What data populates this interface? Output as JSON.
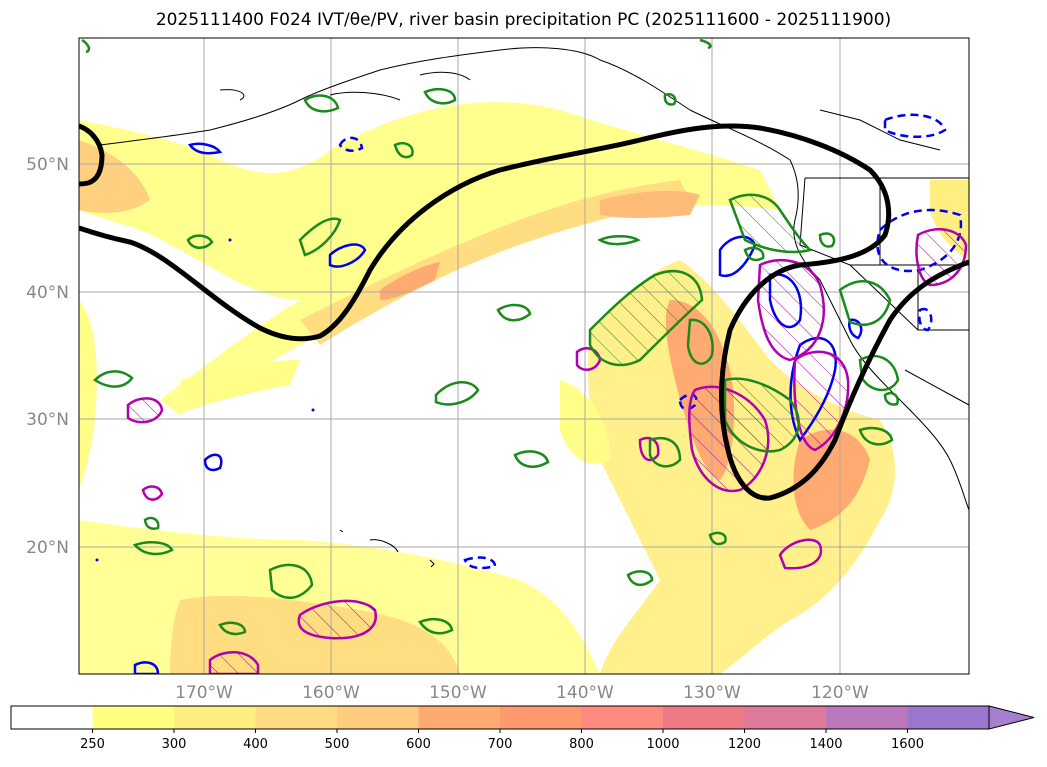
{
  "title": "2025111400 F024 IVT/θe/PV, river basin precipitation PC (2025111600 - 2025111900)",
  "map": {
    "lat_labels": [
      "50°N",
      "40°N",
      "30°N",
      "20°N"
    ],
    "lon_labels": [
      "170°W",
      "160°W",
      "150°W",
      "140°W",
      "130°W",
      "120°W"
    ],
    "layers": {
      "ivt_fill": "IVT shading",
      "theta_e": "theta-e contour",
      "pv_positive": "PV contour",
      "pv_negative": "PV dashed",
      "precip_pc": "precipitation PC contour",
      "coastlines": "coastlines",
      "boundaries": "state borders"
    }
  },
  "colorbar": {
    "ticks": [
      "250",
      "300",
      "400",
      "500",
      "600",
      "700",
      "800",
      "1000",
      "1200",
      "1400",
      "1600"
    ],
    "colors": [
      "#ffffff",
      "#ffff80",
      "#ffee80",
      "#ffdd80",
      "#ffcc80",
      "#ffaa70",
      "#ff9970",
      "#ff8a80",
      "#ee7a88",
      "#dd7a99",
      "#bb77bb",
      "#9a77cc",
      "#a77fcf"
    ]
  }
}
